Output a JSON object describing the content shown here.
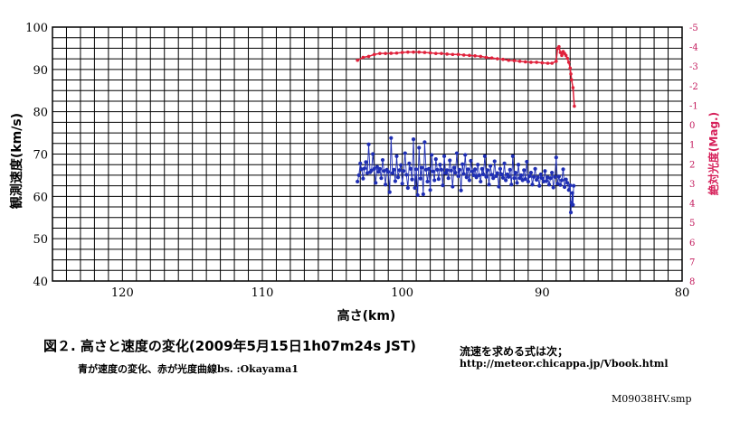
{
  "caption": {
    "title": "図２. 高さと速度の変化(2009年5月15日1h07m24s JST)",
    "subtitle": "青が速度の変化、赤が光度曲線bs. :Okayama1"
  },
  "formula": {
    "label": "流速を求める式は次；",
    "url": "http://meteor.chicappa.jp/Vbook.html"
  },
  "file_id": "M09038HV.smp",
  "chart_data": {
    "type": "scatter",
    "xlabel": "高さ(km)",
    "ylabel": "観測速度(km/s)",
    "y2label": "絶対光度(Mag.)",
    "xlim": [
      125,
      80
    ],
    "ylim": [
      40,
      100
    ],
    "y2lim": [
      -5,
      8
    ],
    "y2_inverted": true,
    "x_ticks": [
      120,
      110,
      100,
      90,
      80
    ],
    "y_ticks": [
      40,
      50,
      60,
      70,
      80,
      90,
      100
    ],
    "y2_ticks": [
      "-5",
      "-4",
      "-3",
      "-2",
      "-1",
      "0",
      "1",
      "2",
      "3",
      "4",
      "5",
      "6",
      "7",
      "8"
    ],
    "grid": true,
    "series": [
      {
        "color": "#1f2fb4",
        "axis": "left",
        "points": [
          [
            103.2,
            63.5
          ],
          [
            103.1,
            65.0
          ],
          [
            103.0,
            67.8
          ],
          [
            102.9,
            66.4
          ],
          [
            102.8,
            64.2
          ],
          [
            102.7,
            66.6
          ],
          [
            102.6,
            68.1
          ],
          [
            102.5,
            65.5
          ],
          [
            102.4,
            72.3
          ],
          [
            102.3,
            65.7
          ],
          [
            102.2,
            66.1
          ],
          [
            102.1,
            70.0
          ],
          [
            102.0,
            66.5
          ],
          [
            101.9,
            63.2
          ],
          [
            101.8,
            67.0
          ],
          [
            101.7,
            65.8
          ],
          [
            101.6,
            66.5
          ],
          [
            101.5,
            64.3
          ],
          [
            101.4,
            68.6
          ],
          [
            101.3,
            66.0
          ],
          [
            101.2,
            62.8
          ],
          [
            101.1,
            66.3
          ],
          [
            101.0,
            65.8
          ],
          [
            100.9,
            61.0
          ],
          [
            100.8,
            73.8
          ],
          [
            100.7,
            65.5
          ],
          [
            100.6,
            66.3
          ],
          [
            100.5,
            63.6
          ],
          [
            100.4,
            69.5
          ],
          [
            100.3,
            64.5
          ],
          [
            100.2,
            66.2
          ],
          [
            100.1,
            67.4
          ],
          [
            100.0,
            63.0
          ],
          [
            99.9,
            66.0
          ],
          [
            99.8,
            70.2
          ],
          [
            99.7,
            65.1
          ],
          [
            99.6,
            62.0
          ],
          [
            99.5,
            67.8
          ],
          [
            99.4,
            66.5
          ],
          [
            99.3,
            64.0
          ],
          [
            99.2,
            73.5
          ],
          [
            99.1,
            62.0
          ],
          [
            99.0,
            66.4
          ],
          [
            98.9,
            60.3
          ],
          [
            98.8,
            71.5
          ],
          [
            98.7,
            64.2
          ],
          [
            98.6,
            66.8
          ],
          [
            98.5,
            60.5
          ],
          [
            98.4,
            72.8
          ],
          [
            98.3,
            66.3
          ],
          [
            98.2,
            63.5
          ],
          [
            98.1,
            66.5
          ],
          [
            98.0,
            61.5
          ],
          [
            97.9,
            69.8
          ],
          [
            97.8,
            65.9
          ],
          [
            97.7,
            63.8
          ],
          [
            97.6,
            68.8
          ],
          [
            97.5,
            66.3
          ],
          [
            97.4,
            64.1
          ],
          [
            97.3,
            67.5
          ],
          [
            97.2,
            66.3
          ],
          [
            97.1,
            62.6
          ],
          [
            97.0,
            69.5
          ],
          [
            96.9,
            65.5
          ],
          [
            96.8,
            66.2
          ],
          [
            96.7,
            64.3
          ],
          [
            96.6,
            68.5
          ],
          [
            96.5,
            66.1
          ],
          [
            96.4,
            62.3
          ],
          [
            96.3,
            66.8
          ],
          [
            96.2,
            65.6
          ],
          [
            96.1,
            70.2
          ],
          [
            96.0,
            64.8
          ],
          [
            95.9,
            66.3
          ],
          [
            95.8,
            61.4
          ],
          [
            95.7,
            67.6
          ],
          [
            95.6,
            65.3
          ],
          [
            95.5,
            69.8
          ],
          [
            95.4,
            64.5
          ],
          [
            95.3,
            66.4
          ],
          [
            95.2,
            63.8
          ],
          [
            95.1,
            68.4
          ],
          [
            95.0,
            65.9
          ],
          [
            94.9,
            65.0
          ],
          [
            94.8,
            66.4
          ],
          [
            94.7,
            64.5
          ],
          [
            94.6,
            67.5
          ],
          [
            94.5,
            65.0
          ],
          [
            94.4,
            63.5
          ],
          [
            94.3,
            66.5
          ],
          [
            94.2,
            65.2
          ],
          [
            94.1,
            69.5
          ],
          [
            94.0,
            64.6
          ],
          [
            93.9,
            66.2
          ],
          [
            93.8,
            62.8
          ],
          [
            93.7,
            67.2
          ],
          [
            93.6,
            65.1
          ],
          [
            93.5,
            64.3
          ],
          [
            93.4,
            68.3
          ],
          [
            93.3,
            64.8
          ],
          [
            93.2,
            65.5
          ],
          [
            93.1,
            62.3
          ],
          [
            93.0,
            66.5
          ],
          [
            92.9,
            65.2
          ],
          [
            92.8,
            64.4
          ],
          [
            92.7,
            67.8
          ],
          [
            92.6,
            63.8
          ],
          [
            92.5,
            65.2
          ],
          [
            92.4,
            64.6
          ],
          [
            92.3,
            66.3
          ],
          [
            92.2,
            62.8
          ],
          [
            92.1,
            69.5
          ],
          [
            92.0,
            64.3
          ],
          [
            91.9,
            65.6
          ],
          [
            91.8,
            63.2
          ],
          [
            91.7,
            67.5
          ],
          [
            91.6,
            64.3
          ],
          [
            91.5,
            65.0
          ],
          [
            91.4,
            63.8
          ],
          [
            91.3,
            66.2
          ],
          [
            91.2,
            64.1
          ],
          [
            91.1,
            68.2
          ],
          [
            91.0,
            63.5
          ],
          [
            90.9,
            64.8
          ],
          [
            90.8,
            65.6
          ],
          [
            90.7,
            62.8
          ],
          [
            90.6,
            64.6
          ],
          [
            90.5,
            66.5
          ],
          [
            90.4,
            63.9
          ],
          [
            90.3,
            64.5
          ],
          [
            90.2,
            62.5
          ],
          [
            90.1,
            65.2
          ],
          [
            90.0,
            64.3
          ],
          [
            89.9,
            63.5
          ],
          [
            89.8,
            66.0
          ],
          [
            89.7,
            63.6
          ],
          [
            89.6,
            64.5
          ],
          [
            89.5,
            62.8
          ],
          [
            89.4,
            64.3
          ],
          [
            89.3,
            65.6
          ],
          [
            89.2,
            62.1
          ],
          [
            89.1,
            64.6
          ],
          [
            89.0,
            69.2
          ],
          [
            88.9,
            63.0
          ],
          [
            88.8,
            64.7
          ],
          [
            88.7,
            62.7
          ],
          [
            88.6,
            63.8
          ],
          [
            88.5,
            66.4
          ],
          [
            88.4,
            62.2
          ],
          [
            88.3,
            64.0
          ],
          [
            88.2,
            63.2
          ],
          [
            88.1,
            61.5
          ],
          [
            88.0,
            62.6
          ],
          [
            87.95,
            56.2
          ],
          [
            87.9,
            58.5
          ],
          [
            87.85,
            60.8
          ],
          [
            87.8,
            58.0
          ],
          [
            87.75,
            62.5
          ]
        ]
      },
      {
        "color": "#e0203a",
        "axis": "right",
        "points": [
          [
            103.2,
            -3.3
          ],
          [
            102.8,
            -3.45
          ],
          [
            102.4,
            -3.5
          ],
          [
            102.0,
            -3.6
          ],
          [
            101.6,
            -3.65
          ],
          [
            101.2,
            -3.65
          ],
          [
            100.8,
            -3.66
          ],
          [
            100.4,
            -3.67
          ],
          [
            100.0,
            -3.7
          ],
          [
            99.6,
            -3.72
          ],
          [
            99.2,
            -3.72
          ],
          [
            98.8,
            -3.72
          ],
          [
            98.4,
            -3.7
          ],
          [
            98.0,
            -3.68
          ],
          [
            97.6,
            -3.65
          ],
          [
            97.2,
            -3.65
          ],
          [
            96.8,
            -3.62
          ],
          [
            96.4,
            -3.6
          ],
          [
            96.0,
            -3.6
          ],
          [
            95.6,
            -3.57
          ],
          [
            95.2,
            -3.55
          ],
          [
            94.8,
            -3.53
          ],
          [
            94.4,
            -3.5
          ],
          [
            94.0,
            -3.45
          ],
          [
            93.6,
            -3.42
          ],
          [
            93.2,
            -3.38
          ],
          [
            92.8,
            -3.35
          ],
          [
            92.4,
            -3.3
          ],
          [
            92.0,
            -3.28
          ],
          [
            91.6,
            -3.25
          ],
          [
            91.2,
            -3.22
          ],
          [
            90.8,
            -3.2
          ],
          [
            90.4,
            -3.2
          ],
          [
            90.0,
            -3.17
          ],
          [
            89.6,
            -3.15
          ],
          [
            89.3,
            -3.15
          ],
          [
            89.0,
            -3.25
          ],
          [
            88.9,
            -3.9
          ],
          [
            88.8,
            -4.0
          ],
          [
            88.7,
            -3.7
          ],
          [
            88.6,
            -3.55
          ],
          [
            88.5,
            -3.75
          ],
          [
            88.4,
            -3.65
          ],
          [
            88.3,
            -3.55
          ],
          [
            88.2,
            -3.4
          ],
          [
            88.1,
            -3.2
          ],
          [
            88.0,
            -2.9
          ],
          [
            87.95,
            -2.6
          ],
          [
            87.9,
            -2.3
          ],
          [
            87.8,
            -1.9
          ],
          [
            87.7,
            -0.95
          ]
        ]
      }
    ]
  }
}
